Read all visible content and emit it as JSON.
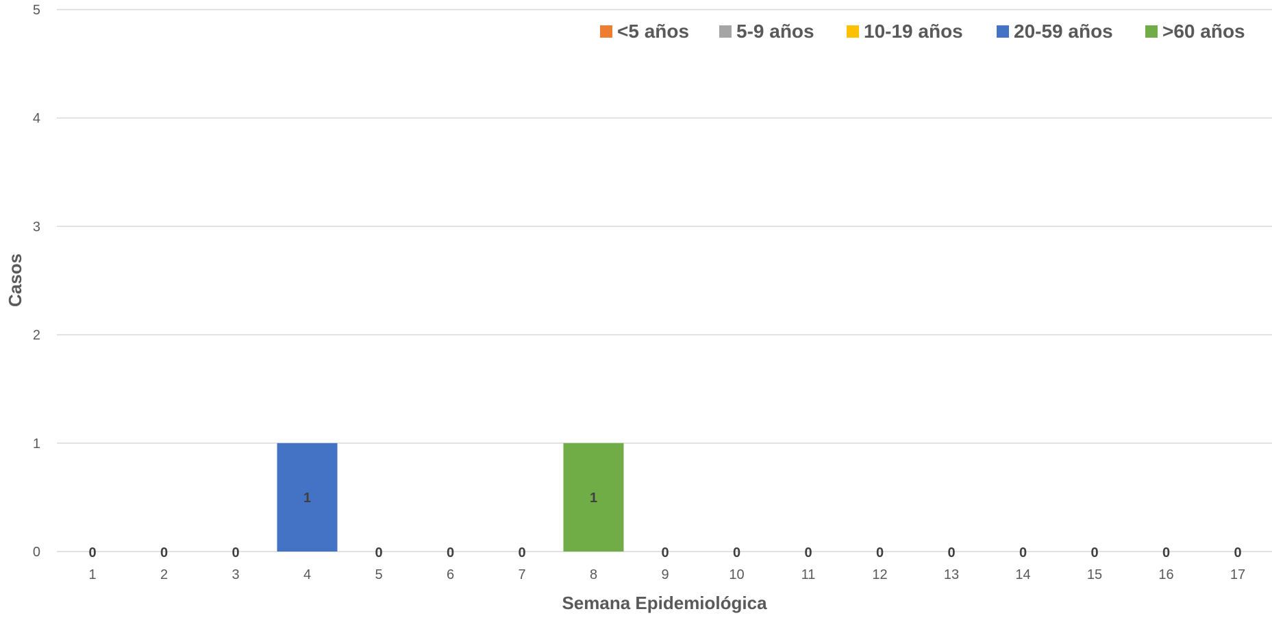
{
  "chart_data": {
    "type": "bar",
    "stacked": true,
    "title": "",
    "xlabel": "Semana Epidemiológica",
    "ylabel": "Casos",
    "categories": [
      "1",
      "2",
      "3",
      "4",
      "5",
      "6",
      "7",
      "8",
      "9",
      "10",
      "11",
      "12",
      "13",
      "14",
      "15",
      "16",
      "17"
    ],
    "ylim": [
      0,
      5
    ],
    "yticks": [
      "0",
      "1",
      "2",
      "3",
      "4",
      "5"
    ],
    "grid": true,
    "legend_position": "top-right",
    "series": [
      {
        "name": "<5 años",
        "color": "#ED7D31",
        "values": [
          0,
          0,
          0,
          0,
          0,
          0,
          0,
          0,
          0,
          0,
          0,
          0,
          0,
          0,
          0,
          0,
          0
        ]
      },
      {
        "name": "5-9 años",
        "color": "#A5A5A5",
        "values": [
          0,
          0,
          0,
          0,
          0,
          0,
          0,
          0,
          0,
          0,
          0,
          0,
          0,
          0,
          0,
          0,
          0
        ]
      },
      {
        "name": "10-19 años",
        "color": "#FFC000",
        "values": [
          0,
          0,
          0,
          0,
          0,
          0,
          0,
          0,
          0,
          0,
          0,
          0,
          0,
          0,
          0,
          0,
          0
        ]
      },
      {
        "name": "20-59 años",
        "color": "#4472C4",
        "values": [
          0,
          0,
          0,
          1,
          0,
          0,
          0,
          0,
          0,
          0,
          0,
          0,
          0,
          0,
          0,
          0,
          0
        ]
      },
      {
        "name": ">60 años",
        "color": "#70AD47",
        "values": [
          0,
          0,
          0,
          0,
          0,
          0,
          0,
          1,
          0,
          0,
          0,
          0,
          0,
          0,
          0,
          0,
          0
        ]
      }
    ],
    "data_labels": {
      "bars": [
        "1",
        "1"
      ],
      "zero_totals": [
        "0",
        "0",
        "0",
        "0",
        "0",
        "0",
        "0",
        "0",
        "0",
        "0",
        "0",
        "0",
        "0",
        "0",
        "0"
      ]
    }
  }
}
